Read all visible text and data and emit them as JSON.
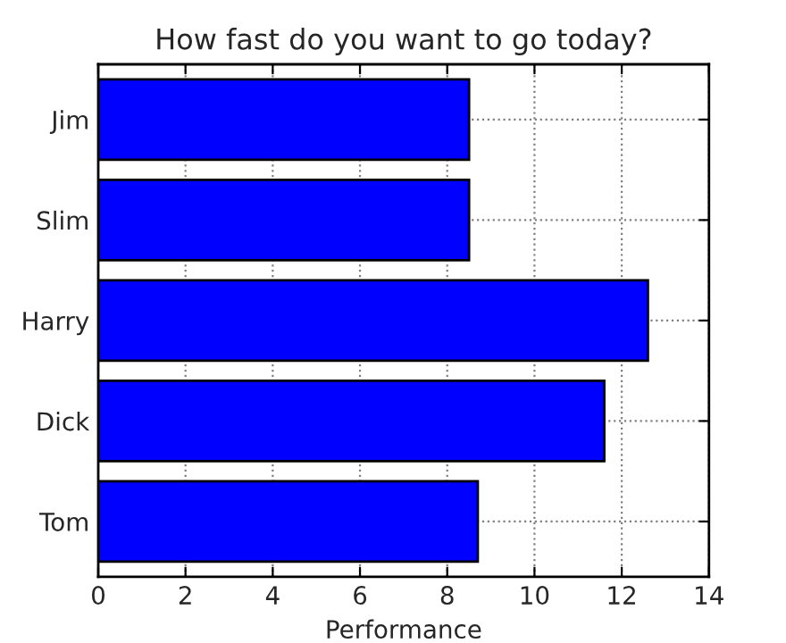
{
  "chart_data": {
    "type": "bar",
    "orientation": "horizontal",
    "title": "How fast do you want to go today?",
    "xlabel": "Performance",
    "categories": [
      "Jim",
      "Slim",
      "Harry",
      "Dick",
      "Tom"
    ],
    "values": [
      8.5,
      8.5,
      12.6,
      11.6,
      8.7
    ],
    "color": "#0000ff",
    "xlim": [
      0,
      14
    ],
    "xticks": [
      0,
      2,
      4,
      6,
      8,
      10,
      12,
      14
    ],
    "grid": true
  }
}
